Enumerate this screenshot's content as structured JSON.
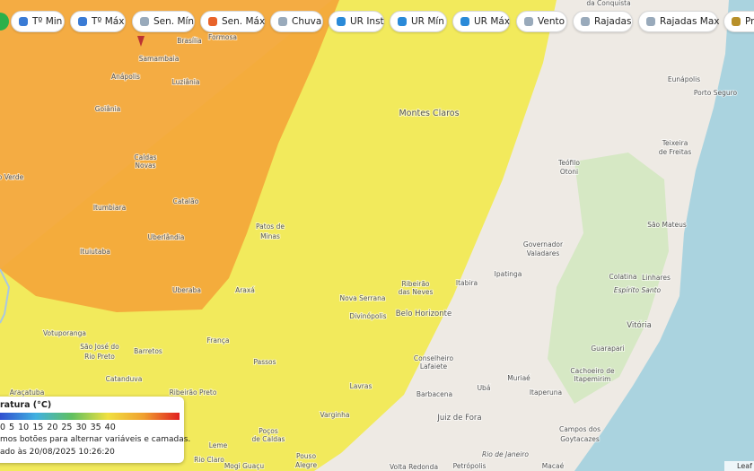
{
  "toolbar": {
    "buttons": [
      "Tº Min",
      "Tº Máx",
      "Sen. Mín",
      "Sen. Máx",
      "Chuva",
      "UR Inst",
      "UR Mín",
      "UR Máx",
      "Vento",
      "Rajadas",
      "Rajadas Max",
      "Pre"
    ]
  },
  "places": [
    "da Conquista",
    "Brasília",
    "Formosa",
    "Samambaia",
    "Anápolis",
    "Luziânia",
    "Goiânia",
    "Montes Claros",
    "Eunápolis",
    "Porto Seguro",
    "Teixeira",
    "de Freitas",
    "Caldas",
    "Novas",
    "Teófilo",
    "Otoni",
    "o Verde",
    "Itumbiara",
    "Catalão",
    "Patos de",
    "Minas",
    "São Mateus",
    "Uberlândia",
    "Ituiutaba",
    "Governador",
    "Valadares",
    "Ipatinga",
    "Colatina",
    "Linhares",
    "Espírito Santo",
    "Araxá",
    "Uberaba",
    "Ribeirão",
    "das Neves",
    "Itabira",
    "Nova Serrana",
    "Divinópolis",
    "Belo Horizonte",
    "Vitória",
    "Votuporanga",
    "Guarapari",
    "São José do",
    "Rio Preto",
    "Barretos",
    "França",
    "Conselheiro",
    "Lafaiete",
    "Cachoeiro de",
    "Itapemirim",
    "Passos",
    "Catanduva",
    "Muriaé",
    "Ubá",
    "Lavras",
    "Araçatuba",
    "Ribeirão Preto",
    "Itaperuna",
    "Barbacena",
    "Varginha",
    "Juiz de Fora",
    "Campos dos",
    "Goytacazes",
    "Leme",
    "Poços",
    "de Caldas",
    "Rio Claro",
    "Mogi Guaçu",
    "Pouso",
    "Alegre",
    "Volta Redonda",
    "Petrópolis",
    "Rio de Janeiro",
    "Macaé"
  ],
  "legend": {
    "title": "ratura (°C)",
    "scale": [
      0,
      5,
      10,
      15,
      20,
      25,
      30,
      35,
      40
    ],
    "hint": "mos botões para alternar variáveis e camadas.",
    "updated": "ado às 20/08/2025 10:26:20"
  },
  "attribution": "Leaf"
}
